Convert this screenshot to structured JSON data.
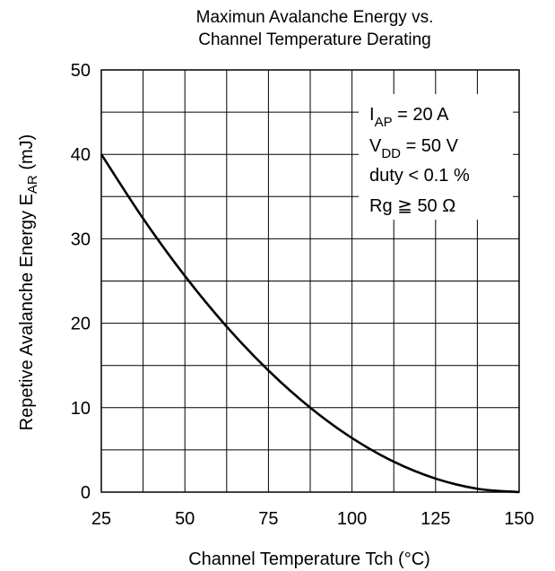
{
  "chart_data": {
    "type": "line",
    "title_line1": "Maximun Avalanche Energy vs.",
    "title_line2": "Channel Temperature Derating",
    "xlabel": "Channel Temperature   Tch  (°C)",
    "ylabel_main": "Repetive Avalanche Energy   E",
    "ylabel_sub": "AR",
    "ylabel_unit": "  (mJ)",
    "xlim": [
      25,
      150
    ],
    "ylim": [
      0,
      50
    ],
    "x_ticks": [
      25,
      50,
      75,
      100,
      125,
      150
    ],
    "x_tick_labels": [
      "25",
      "50",
      "75",
      "100",
      "125",
      "150"
    ],
    "y_ticks": [
      0,
      10,
      20,
      30,
      40,
      50
    ],
    "y_tick_labels": [
      "0",
      "10",
      "20",
      "30",
      "40",
      "50"
    ],
    "x_grid_step": 12.5,
    "y_grid_step": 5,
    "grid": true,
    "annotations": [
      {
        "main": "I",
        "sub": "AP",
        "rest": " = 20 A"
      },
      {
        "main": "V",
        "sub": "DD",
        "rest": " = 50 V"
      },
      {
        "main": "duty < 0.1 %",
        "sub": "",
        "rest": ""
      },
      {
        "main": "Rg ≧ 50 Ω",
        "sub": "",
        "rest": ""
      }
    ],
    "series": [
      {
        "x": [
          25,
          37.5,
          50,
          62.5,
          75,
          87.5,
          100,
          112.5,
          125,
          137.5,
          150
        ],
        "values": [
          40,
          32.4,
          25.6,
          19.6,
          14.4,
          10,
          6.4,
          3.6,
          1.6,
          0.4,
          0
        ]
      }
    ]
  }
}
